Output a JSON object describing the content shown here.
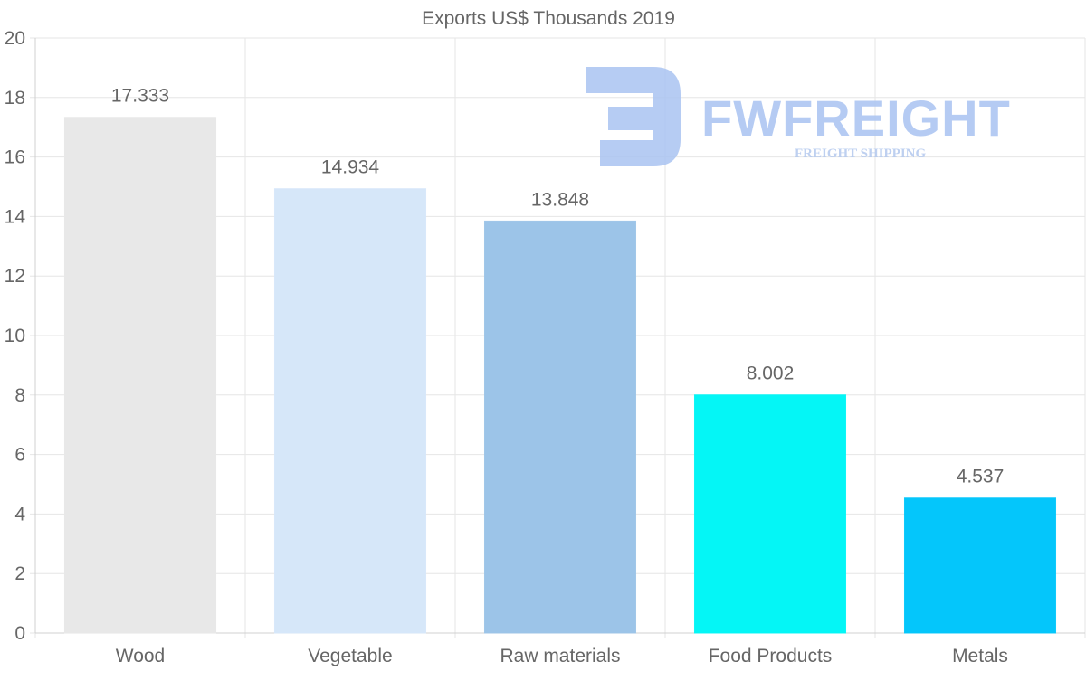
{
  "chart_data": {
    "type": "bar",
    "title": "Exports US$ Thousands 2019",
    "categories": [
      "Wood",
      "Vegetable",
      "Raw materials",
      "Food Products",
      "Metals"
    ],
    "values": [
      17.333,
      14.934,
      13.848,
      8.002,
      4.537
    ],
    "data_labels": [
      "17.333",
      "14.934",
      "13.848",
      "8.002",
      "4.537"
    ],
    "colors": [
      "#e8e8e8",
      "#d6e7f9",
      "#9cc4e8",
      "#04f6f6",
      "#04c6fb"
    ],
    "ylim": [
      0,
      20
    ],
    "yticks": [
      0,
      2,
      4,
      6,
      8,
      10,
      12,
      14,
      16,
      18,
      20
    ],
    "xlabel": "",
    "ylabel": "",
    "grid": true
  },
  "watermark": {
    "name": "FWFREIGHT",
    "tagline": "FREIGHT SHIPPING",
    "color": "#a9c3f1"
  }
}
